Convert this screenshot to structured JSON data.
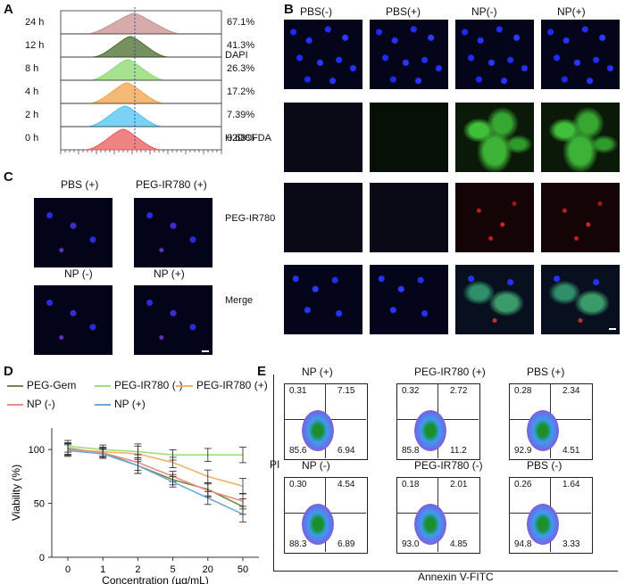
{
  "panels": {
    "A": "A",
    "B": "B",
    "C": "C",
    "D": "D",
    "E": "E"
  },
  "panel_a": {
    "rows": [
      {
        "time": "24 h",
        "pct": "67.1%",
        "color": "#c78f8f"
      },
      {
        "time": "12 h",
        "pct": "41.3%",
        "color": "#4a6b2a"
      },
      {
        "time": "8 h",
        "pct": "26.3%",
        "color": "#88d86a"
      },
      {
        "time": "4 h",
        "pct": "17.2%",
        "color": "#f2a24a"
      },
      {
        "time": "2 h",
        "pct": "7.39%",
        "color": "#4dc4f0"
      },
      {
        "time": "0 h",
        "pct": "0.68%",
        "color": "#e85a5a"
      }
    ]
  },
  "panel_b": {
    "columns": [
      "PBS(-)",
      "PBS(+)",
      "NP(-)",
      "NP(+)"
    ],
    "rows": [
      "DAPI",
      "H2DCFDA",
      "PEG-IR780",
      "Merge"
    ]
  },
  "panel_c": {
    "labels": [
      "PBS (+)",
      "PEG-IR780 (+)",
      "NP (-)",
      "NP (+)"
    ]
  },
  "panel_e": {
    "plots": [
      {
        "title": "NP (+)",
        "ul": "0.31",
        "ur": "7.15",
        "ll": "85.6",
        "lr": "6.94"
      },
      {
        "title": "PEG-IR780 (+)",
        "ul": "0.32",
        "ur": "2.72",
        "ll": "85.8",
        "lr": "11.2"
      },
      {
        "title": "PBS (+)",
        "ul": "0.28",
        "ur": "2.34",
        "ll": "92.9",
        "lr": "4.51"
      },
      {
        "title": "NP (-)",
        "ul": "0.30",
        "ur": "4.54",
        "ll": "88.3",
        "lr": "6.89"
      },
      {
        "title": "PEG-IR780 (-)",
        "ul": "0.18",
        "ur": "2.01",
        "ll": "93.0",
        "lr": "4.85"
      },
      {
        "title": "PBS (-)",
        "ul": "0.26",
        "ur": "1.64",
        "ll": "94.8",
        "lr": "3.33"
      }
    ],
    "ylabel": "PI",
    "xlabel": "Annexin V-FITC"
  },
  "chart_data": {
    "type": "line",
    "categories": [
      "0",
      "1",
      "2",
      "5",
      "20",
      "50"
    ],
    "xlabel": "Concentration (µg/mL)",
    "ylabel": "Viability (%)",
    "ylim": [
      0,
      120
    ],
    "yticks": [
      "0",
      "50",
      "100"
    ],
    "series": [
      {
        "name": "PEG-Gem",
        "color": "#6b8e3a",
        "values": [
          101,
          97,
          85,
          72,
          63,
          47
        ]
      },
      {
        "name": "PEG-IR780 (-)",
        "color": "#9be07a",
        "values": [
          103,
          100,
          98,
          95,
          95,
          95
        ]
      },
      {
        "name": "PEG-IR780 (+)",
        "color": "#f2b06a",
        "values": [
          100,
          98,
          96,
          88,
          75,
          66
        ]
      },
      {
        "name": "NP (-)",
        "color": "#ef8a8a",
        "values": [
          100,
          97,
          88,
          75,
          62,
          52
        ]
      },
      {
        "name": "NP (+)",
        "color": "#6fa8dc",
        "values": [
          99,
          96,
          85,
          70,
          55,
          40
        ]
      }
    ],
    "errors": [
      9,
      7,
      12,
      8,
      10,
      12
    ]
  }
}
